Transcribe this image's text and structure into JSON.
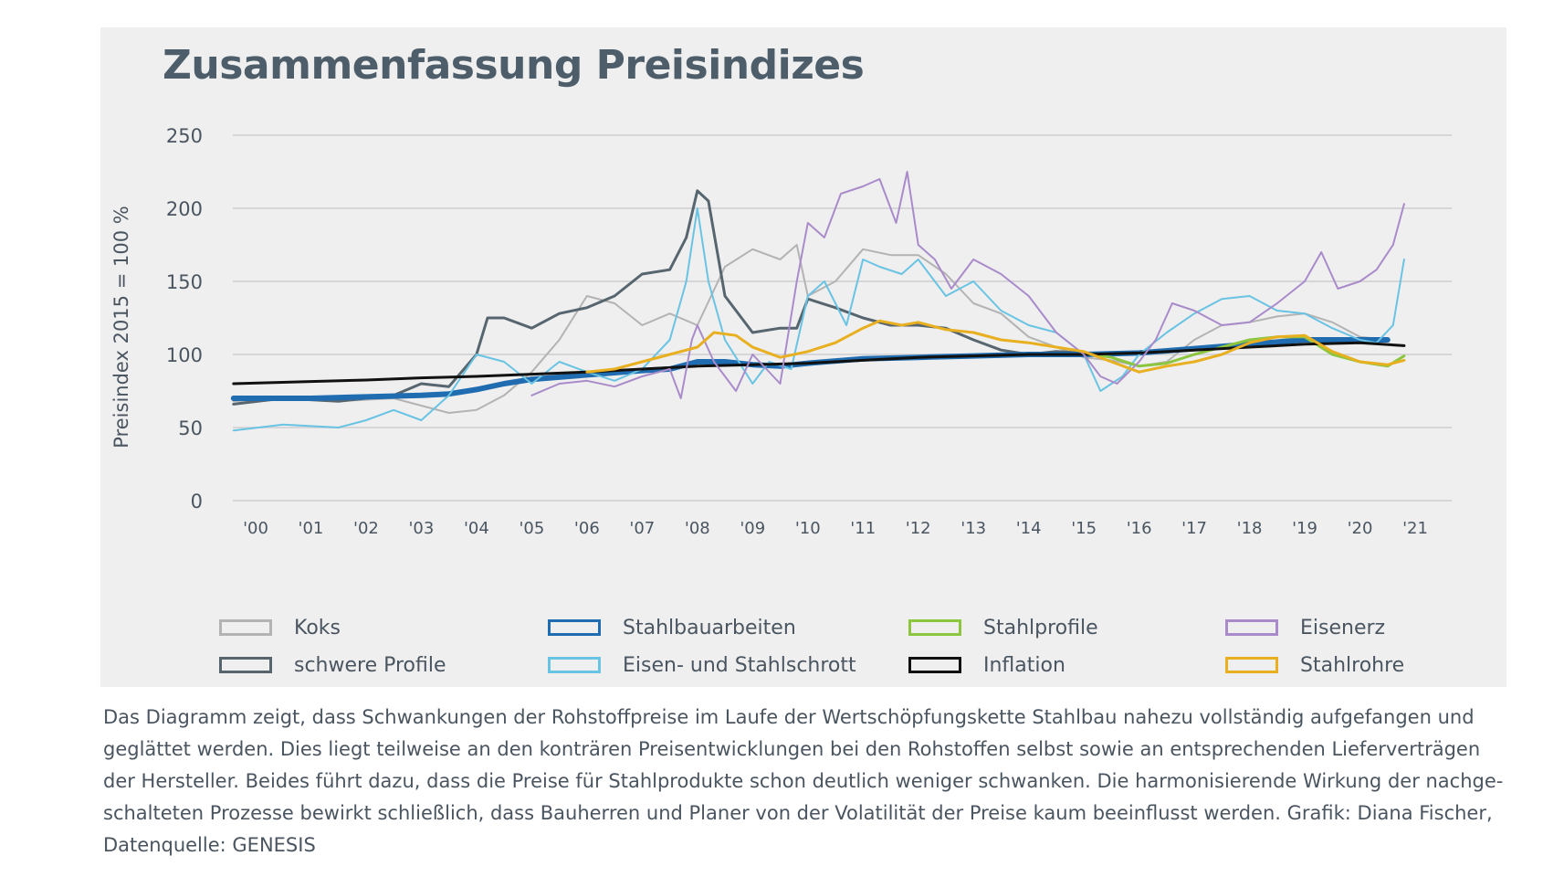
{
  "chart_data": {
    "type": "line",
    "title": "Zusammenfassung Preisindizes",
    "xlabel": "",
    "ylabel": "Preisindex 2015 = 100 %",
    "ylim": [
      0,
      250
    ],
    "yticks": [
      0,
      50,
      100,
      150,
      200,
      250
    ],
    "xlim": [
      1999.6,
      2021.5
    ],
    "xtick_values": [
      2000,
      2001,
      2002,
      2003,
      2004,
      2005,
      2006,
      2007,
      2008,
      2009,
      2010,
      2011,
      2012,
      2013,
      2014,
      2015,
      2016,
      2017,
      2018,
      2019,
      2020,
      2021
    ],
    "xtick_labels": [
      "'00",
      "'01",
      "'02",
      "'03",
      "'04",
      "'05",
      "'06",
      "'07",
      "'08",
      "'09",
      "'10",
      "'11",
      "'12",
      "'13",
      "'14",
      "'15",
      "'16",
      "'17",
      "'18",
      "'19",
      "'20",
      "'21"
    ],
    "grid": true,
    "legend_position": "bottom",
    "series": [
      {
        "name": "Koks",
        "color": "#b3b3b3",
        "width": 2,
        "x": [
          1999.6,
          2000.5,
          2001.5,
          2002.5,
          2003.0,
          2003.5,
          2004.0,
          2004.5,
          2005.0,
          2005.5,
          2006.0,
          2006.5,
          2007.0,
          2007.5,
          2008.0,
          2008.5,
          2009.0,
          2009.5,
          2009.8,
          2010.0,
          2010.5,
          2011.0,
          2011.5,
          2012.0,
          2012.5,
          2013.0,
          2013.5,
          2014.0,
          2014.5,
          2015.0,
          2015.5,
          2016.0,
          2016.5,
          2017.0,
          2017.5,
          2018.0,
          2018.5,
          2019.0,
          2019.5,
          2020.0,
          2020.5
        ],
        "y": [
          68,
          70,
          68,
          70,
          65,
          60,
          62,
          72,
          88,
          110,
          140,
          135,
          120,
          128,
          120,
          160,
          172,
          165,
          175,
          140,
          150,
          172,
          168,
          168,
          155,
          135,
          128,
          112,
          105,
          98,
          96,
          92,
          95,
          110,
          120,
          122,
          126,
          128,
          122,
          112,
          110
        ]
      },
      {
        "name": "schwere Profile",
        "color": "#56656e",
        "width": 3,
        "x": [
          1999.6,
          2000.5,
          2001.5,
          2002.5,
          2003.0,
          2003.5,
          2004.0,
          2004.2,
          2004.5,
          2005.0,
          2005.5,
          2006.0,
          2006.5,
          2007.0,
          2007.5,
          2007.8,
          2008.0,
          2008.2,
          2008.5,
          2009.0,
          2009.5,
          2009.8,
          2010.0,
          2010.5,
          2011.0,
          2011.5,
          2012.0,
          2012.5,
          2013.0,
          2013.5,
          2014.0,
          2014.5,
          2015.0,
          2015.5
        ],
        "y": [
          66,
          70,
          68,
          72,
          80,
          78,
          100,
          125,
          125,
          118,
          128,
          132,
          140,
          155,
          158,
          180,
          212,
          205,
          140,
          115,
          118,
          118,
          138,
          132,
          125,
          120,
          120,
          118,
          110,
          103,
          100,
          102,
          101,
          99
        ]
      },
      {
        "name": "Stahlbauarbeiten",
        "color": "#1f6cb0",
        "width": 6,
        "x": [
          1999.6,
          2001.0,
          2002.0,
          2003.0,
          2003.5,
          2004.0,
          2004.5,
          2005.0,
          2006.0,
          2007.0,
          2007.5,
          2008.0,
          2008.5,
          2009.0,
          2009.5,
          2010.0,
          2011.0,
          2012.0,
          2013.0,
          2014.0,
          2015.0,
          2016.0,
          2017.0,
          2018.0,
          2019.0,
          2020.0,
          2020.5
        ],
        "y": [
          70,
          70,
          71,
          72,
          73,
          76,
          80,
          83,
          86,
          89,
          90,
          95,
          95,
          93,
          92,
          94,
          97,
          98,
          99,
          100,
          100,
          101,
          104,
          107,
          110,
          110,
          110
        ]
      },
      {
        "name": "Eisen- und Stahlschrott",
        "color": "#69c3e3",
        "width": 2,
        "x": [
          1999.6,
          2000.5,
          2001.5,
          2002.0,
          2002.5,
          2003.0,
          2003.5,
          2004.0,
          2004.5,
          2005.0,
          2005.5,
          2006.0,
          2006.5,
          2007.0,
          2007.5,
          2007.8,
          2008.0,
          2008.2,
          2008.5,
          2009.0,
          2009.3,
          2009.7,
          2010.0,
          2010.3,
          2010.7,
          2011.0,
          2011.3,
          2011.7,
          2012.0,
          2012.5,
          2013.0,
          2013.5,
          2014.0,
          2014.5,
          2015.0,
          2015.3,
          2015.7,
          2016.0,
          2016.5,
          2017.0,
          2017.5,
          2018.0,
          2018.5,
          2019.0,
          2019.5,
          2020.0,
          2020.3,
          2020.6,
          2020.8
        ],
        "y": [
          48,
          52,
          50,
          55,
          62,
          55,
          72,
          100,
          95,
          80,
          95,
          88,
          82,
          90,
          110,
          150,
          200,
          150,
          110,
          80,
          95,
          90,
          140,
          150,
          120,
          165,
          160,
          155,
          165,
          140,
          150,
          130,
          120,
          115,
          100,
          75,
          85,
          100,
          115,
          128,
          138,
          140,
          130,
          128,
          118,
          110,
          108,
          120,
          165
        ]
      },
      {
        "name": "Stahlprofile",
        "color": "#8cc63f",
        "width": 3,
        "x": [
          2015.0,
          2015.5,
          2016.0,
          2016.5,
          2017.0,
          2017.5,
          2018.0,
          2018.5,
          2019.0,
          2019.5,
          2020.0,
          2020.5,
          2020.8
        ],
        "y": [
          101,
          98,
          92,
          94,
          100,
          105,
          110,
          112,
          112,
          100,
          95,
          92,
          99
        ]
      },
      {
        "name": "Inflation",
        "color": "#111111",
        "width": 3,
        "x": [
          1999.6,
          2001.0,
          2002.0,
          2003.0,
          2004.0,
          2005.0,
          2006.0,
          2007.0,
          2008.0,
          2009.0,
          2010.0,
          2011.0,
          2012.0,
          2013.0,
          2014.0,
          2015.0,
          2016.0,
          2017.0,
          2018.0,
          2019.0,
          2020.0,
          2020.8
        ],
        "y": [
          80,
          81.5,
          82.5,
          84,
          85,
          86.5,
          88,
          90,
          92,
          93,
          94,
          96,
          98,
          99,
          100,
          100,
          101,
          103,
          105,
          107,
          108,
          106
        ]
      },
      {
        "name": "Eisenerz",
        "color": "#a98bc9",
        "width": 2,
        "x": [
          2005.0,
          2005.5,
          2006.0,
          2006.5,
          2007.0,
          2007.5,
          2007.7,
          2007.9,
          2008.0,
          2008.3,
          2008.7,
          2009.0,
          2009.5,
          2009.8,
          2010.0,
          2010.3,
          2010.6,
          2011.0,
          2011.3,
          2011.6,
          2011.8,
          2012.0,
          2012.3,
          2012.6,
          2013.0,
          2013.5,
          2014.0,
          2014.5,
          2015.0,
          2015.3,
          2015.6,
          2016.0,
          2016.3,
          2016.6,
          2017.0,
          2017.5,
          2018.0,
          2018.5,
          2019.0,
          2019.3,
          2019.6,
          2020.0,
          2020.3,
          2020.6,
          2020.8
        ],
        "y": [
          72,
          80,
          82,
          78,
          85,
          90,
          70,
          110,
          120,
          95,
          75,
          100,
          80,
          150,
          190,
          180,
          210,
          215,
          220,
          190,
          225,
          175,
          165,
          145,
          165,
          155,
          140,
          115,
          100,
          85,
          80,
          95,
          110,
          135,
          130,
          120,
          122,
          135,
          150,
          170,
          145,
          150,
          158,
          175,
          203
        ]
      },
      {
        "name": "Stahlrohre",
        "color": "#e8b020",
        "width": 3,
        "x": [
          2006.0,
          2006.5,
          2007.0,
          2007.5,
          2008.0,
          2008.3,
          2008.7,
          2009.0,
          2009.5,
          2010.0,
          2010.5,
          2011.0,
          2011.3,
          2011.7,
          2012.0,
          2012.5,
          2013.0,
          2013.5,
          2014.0,
          2014.5,
          2015.0,
          2015.5,
          2016.0,
          2016.5,
          2017.0,
          2017.5,
          2018.0,
          2018.5,
          2019.0,
          2019.5,
          2020.0,
          2020.5,
          2020.8
        ],
        "y": [
          88,
          90,
          95,
          100,
          105,
          115,
          113,
          105,
          98,
          102,
          108,
          118,
          123,
          120,
          122,
          117,
          115,
          110,
          108,
          105,
          102,
          95,
          88,
          92,
          95,
          100,
          108,
          112,
          113,
          102,
          95,
          93,
          96
        ]
      }
    ]
  },
  "legend": [
    {
      "label": "Koks",
      "color": "#b3b3b3"
    },
    {
      "label": "Stahlbauarbeiten",
      "color": "#1f6cb0"
    },
    {
      "label": "Stahlprofile",
      "color": "#8cc63f"
    },
    {
      "label": "Eisenerz",
      "color": "#a98bc9"
    },
    {
      "label": "schwere Profile",
      "color": "#56656e"
    },
    {
      "label": "Eisen- und Stahlschrott",
      "color": "#69c3e3"
    },
    {
      "label": "Inflation",
      "color": "#111111"
    },
    {
      "label": "Stahlrohre",
      "color": "#e8b020"
    }
  ],
  "caption": {
    "lines": [
      "Das Diagramm zeigt, dass Schwankungen der Rohstoffpreise im Laufe der Wertschöpfungskette Stahlbau nahezu vollständig aufgefangen und",
      "geglättet werden. Dies liegt teilweise an den konträren Preisentwicklungen bei den Rohstoffen selbst sowie an entsprechenden Lieferverträgen",
      "der Hersteller. Beides führt dazu, dass die Preise für Stahlprodukte schon deutlich weniger schwanken. Die harmonisierende Wirkung der nachge-",
      "schalteten Prozesse bewirkt schließlich, dass Bauherren und Planer von der Volatilität der Preise kaum beeinflusst werden. Grafik: Diana Fischer,",
      "Datenquelle: GENESIS"
    ]
  },
  "colors": {
    "panel": "#efeff0",
    "title": "#4d5e6a",
    "text": "#4a5560",
    "grid": "#d6d6d8"
  }
}
